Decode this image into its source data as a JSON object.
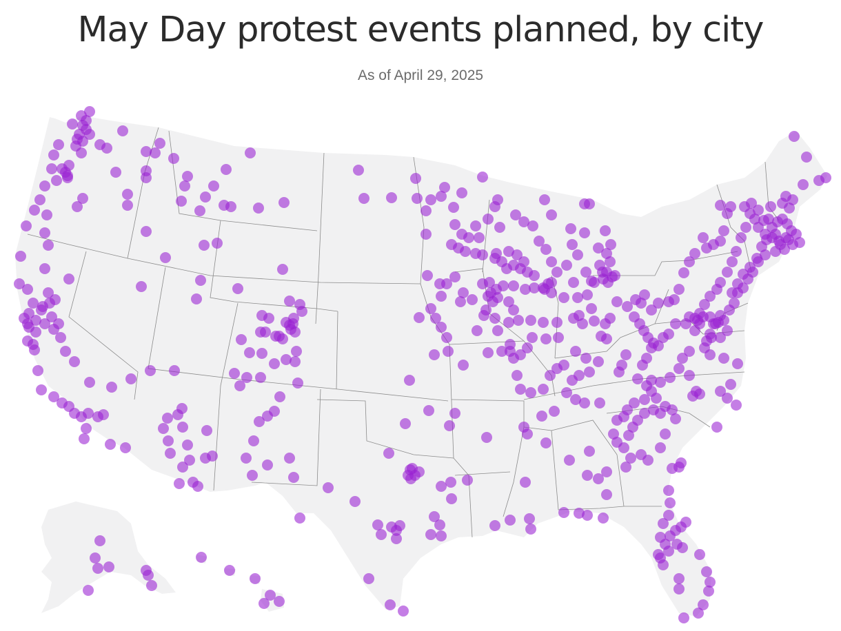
{
  "title": "May Day protest events planned, by city",
  "subtitle": "As of April 29, 2025",
  "colors": {
    "dot": "#9a21d3",
    "land": "#f1f1f2",
    "border": "#8a8a8a",
    "title": "#2b2b2b"
  },
  "map": {
    "region": "United States",
    "marker": "protest event location"
  }
}
